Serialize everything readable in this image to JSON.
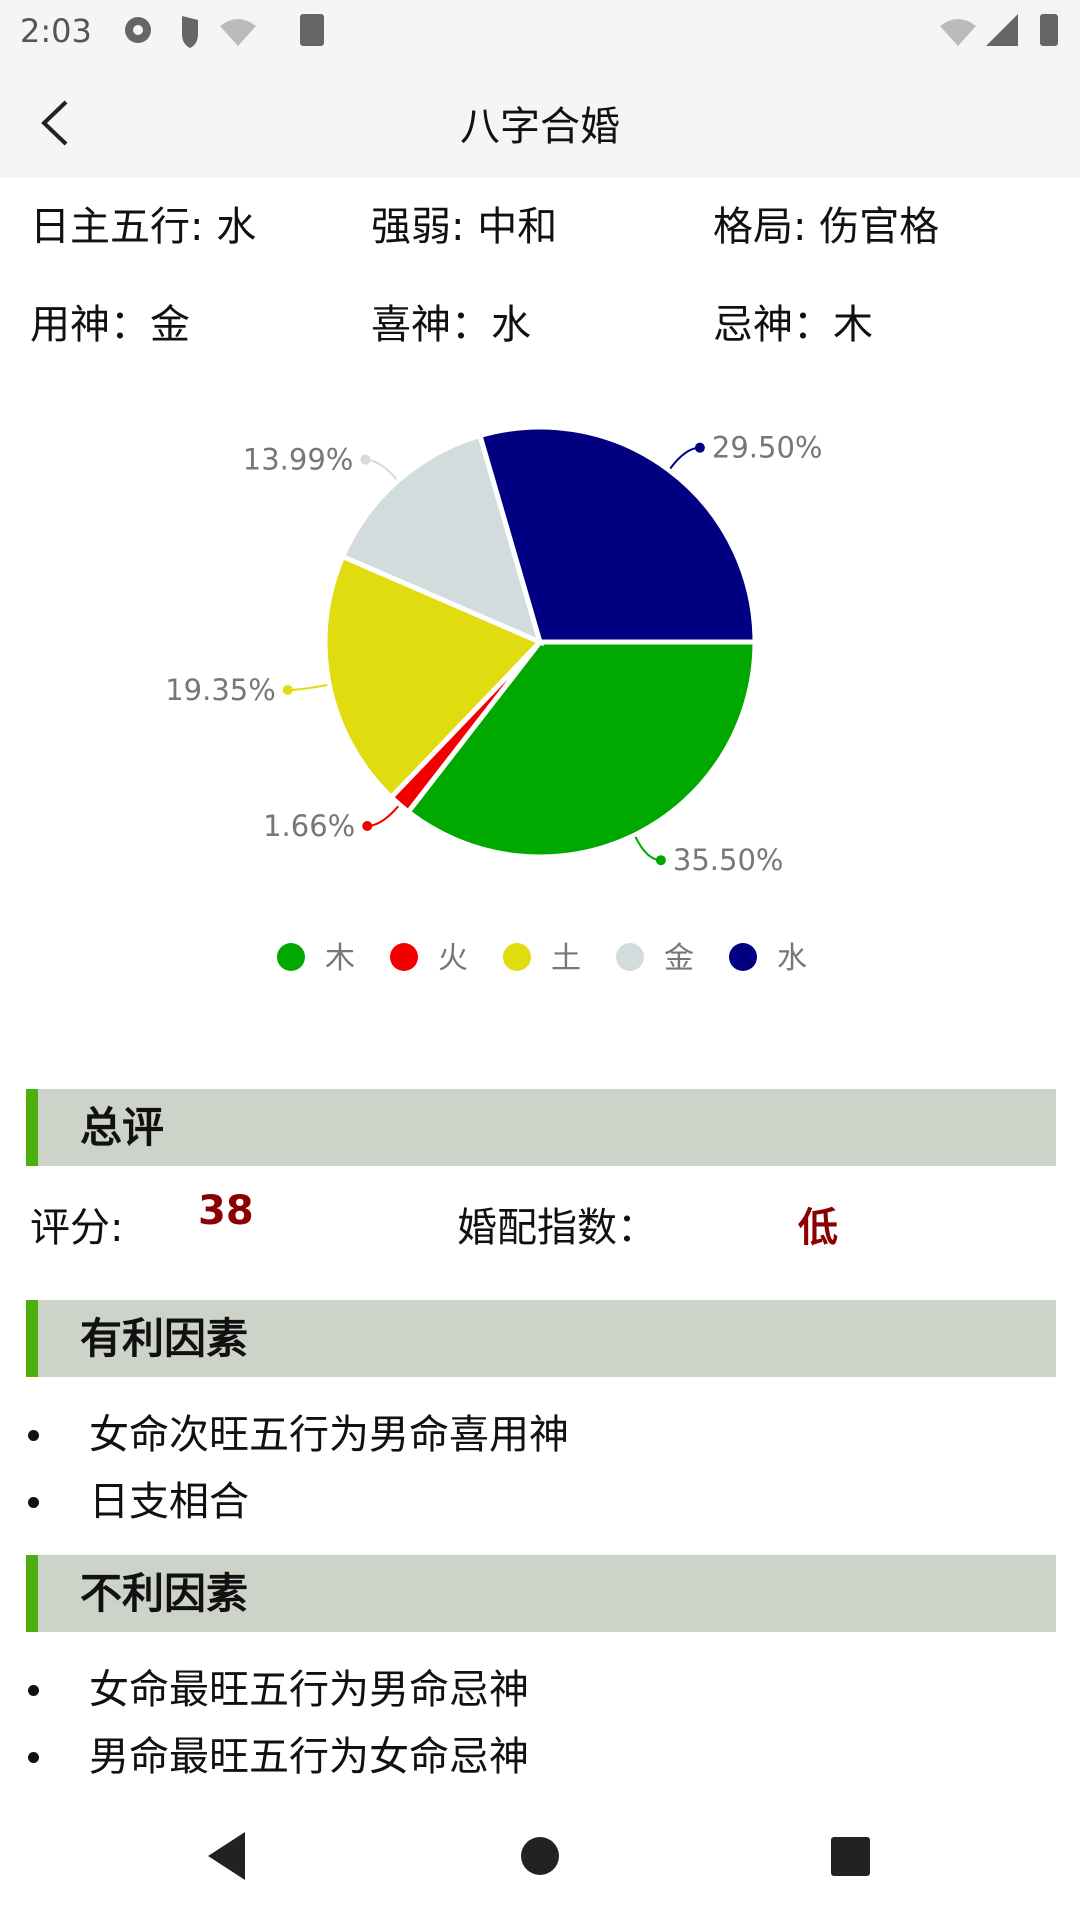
{
  "status_bar": {
    "time": "2:03"
  },
  "header": {
    "title": "八字合婚"
  },
  "info": [
    [
      "日主五行: 水",
      "强弱: 中和",
      "格局: 伤官格"
    ],
    [
      "用神：金",
      "喜神：水",
      "忌神：木"
    ]
  ],
  "chart_data": {
    "type": "pie",
    "categories": [
      "木",
      "火",
      "土",
      "金",
      "水"
    ],
    "values": [
      35.5,
      1.66,
      19.35,
      13.99,
      29.5
    ],
    "value_labels": [
      "35.50%",
      "1.66%",
      "19.35%",
      "13.99%",
      "29.50%"
    ],
    "colors": [
      "#00a800",
      "#f20000",
      "#e0dc10",
      "#d2dcdc",
      "#000080"
    ],
    "legend": "bottom"
  },
  "summary": {
    "title": "总评",
    "score_label": "评分:",
    "score": 38,
    "index_label": "婚配指数：",
    "index": "低"
  },
  "sections": [
    {
      "title": "有利因素",
      "items": [
        "女命次旺五行为男命喜用神",
        "日支相合"
      ]
    },
    {
      "title": "不利因素",
      "items": [
        "女命最旺五行为男命忌神",
        "男命最旺五行为女命忌神"
      ]
    }
  ]
}
